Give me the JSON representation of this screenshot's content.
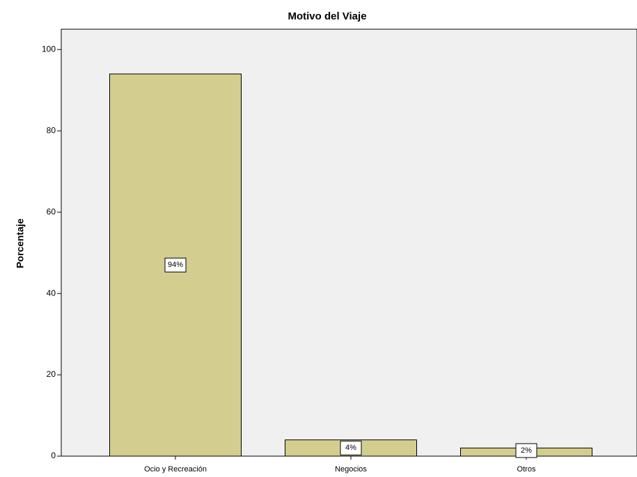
{
  "chart_data": {
    "type": "bar",
    "title": "Motivo del Viaje",
    "y_label": "Porcentaje",
    "categories": [
      "Ocio y Recreación",
      "Negocios",
      "Otros"
    ],
    "values": [
      94,
      4,
      2
    ],
    "value_labels": [
      "94%",
      "4%",
      "2%"
    ],
    "color": "#d3ce8f",
    "ylim": [
      0,
      105
    ],
    "yticks": [
      0,
      20,
      40,
      60,
      80,
      100
    ],
    "grid": false
  }
}
